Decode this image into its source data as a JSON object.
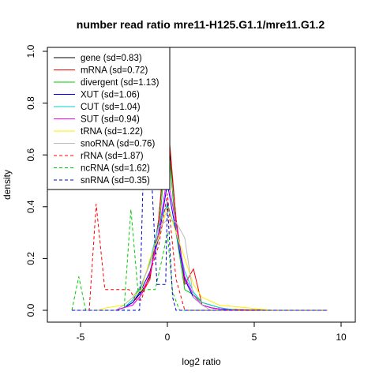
{
  "chart_data": {
    "type": "line",
    "title": "number read ratio mre11-H125.G1.1/mre11.G1.2",
    "xlabel": "log2 ratio",
    "ylabel": "density",
    "xlim": [
      -6,
      10
    ],
    "ylim": [
      0,
      1.0
    ],
    "xticks": [
      -5,
      0,
      5,
      10
    ],
    "xtick_labels": [
      "-5",
      "0",
      "5",
      "10"
    ],
    "yticks": [
      0.0,
      0.2,
      0.4,
      0.6,
      0.8,
      1.0
    ],
    "ytick_labels": [
      "0.0",
      "0.2",
      "0.4",
      "0.6",
      "0.8",
      "1.0"
    ],
    "legend_position": "top-left",
    "series": [
      {
        "name": "gene (sd=0.83)",
        "color": "#000000",
        "dash": "solid",
        "x": [
          -5.5,
          -3,
          -2.5,
          -2,
          -1.5,
          -1,
          -0.5,
          0,
          0.5,
          1,
          1.5,
          2,
          2.5,
          3,
          4,
          6,
          9.2
        ],
        "y": [
          0,
          0,
          0.01,
          0.03,
          0.07,
          0.13,
          0.35,
          0.72,
          0.35,
          0.12,
          0.05,
          0.02,
          0.01,
          0.005,
          0.002,
          0,
          0
        ]
      },
      {
        "name": "mRNA (sd=0.72)",
        "color": "#ff0000",
        "dash": "solid",
        "x": [
          -5.5,
          -3,
          -2.5,
          -2,
          -1.5,
          -1,
          -0.5,
          0,
          0.5,
          1,
          1.5,
          2,
          2.5,
          3,
          4,
          6,
          9.2
        ],
        "y": [
          0,
          0,
          0.01,
          0.02,
          0.06,
          0.12,
          0.35,
          0.75,
          0.35,
          0.1,
          0.16,
          0.02,
          0.01,
          0.005,
          0.002,
          0,
          0
        ]
      },
      {
        "name": "divergent (sd=1.13)",
        "color": "#00cc00",
        "dash": "solid",
        "x": [
          -5.5,
          -3,
          -2.5,
          -2,
          -1.5,
          -1,
          -0.5,
          0,
          0.5,
          1,
          1.5,
          2,
          2.5,
          3,
          4,
          6,
          9.2
        ],
        "y": [
          0,
          0,
          0.01,
          0.04,
          0.1,
          0.18,
          0.3,
          0.68,
          0.3,
          0.08,
          0.06,
          0.03,
          0.02,
          0.01,
          0,
          0,
          0
        ]
      },
      {
        "name": "XUT (sd=1.06)",
        "color": "#0000ff",
        "dash": "solid",
        "x": [
          -5.5,
          -3,
          -2.5,
          -2,
          -1.5,
          -1,
          -0.5,
          0,
          0.5,
          1,
          1.5,
          2,
          2.5,
          3,
          4,
          6,
          9.2
        ],
        "y": [
          0,
          0,
          0.01,
          0.03,
          0.08,
          0.15,
          0.28,
          0.49,
          0.3,
          0.12,
          0.05,
          0.02,
          0.01,
          0.005,
          0,
          0,
          0
        ]
      },
      {
        "name": "CUT (sd=1.04)",
        "color": "#00cccc",
        "dash": "solid",
        "x": [
          -5.5,
          -3,
          -2.5,
          -2,
          -1.5,
          -1,
          -0.5,
          0,
          0.5,
          1,
          1.5,
          2,
          2.5,
          3,
          4,
          6,
          9.2
        ],
        "y": [
          0,
          0,
          0.01,
          0.04,
          0.09,
          0.19,
          0.33,
          0.41,
          0.3,
          0.15,
          0.07,
          0.03,
          0.02,
          0.01,
          0,
          0,
          0
        ]
      },
      {
        "name": "SUT (sd=0.94)",
        "color": "#ff00ff",
        "dash": "solid",
        "x": [
          -5.5,
          -3,
          -2.5,
          -2,
          -1.5,
          -1,
          -0.5,
          0,
          0.5,
          1,
          1.5,
          2,
          2.5,
          3,
          4,
          6,
          9.2
        ],
        "y": [
          0,
          0,
          0.01,
          0.02,
          0.06,
          0.14,
          0.3,
          0.52,
          0.33,
          0.13,
          0.06,
          0.02,
          0.01,
          0.005,
          0,
          0,
          0
        ]
      },
      {
        "name": "tRNA (sd=1.22)",
        "color": "#ffee00",
        "dash": "solid",
        "x": [
          -5.5,
          -4,
          -3.5,
          -3,
          -2.5,
          -2,
          -1.5,
          -1,
          -0.5,
          0,
          0.5,
          1,
          1.5,
          2,
          3,
          6,
          9.2
        ],
        "y": [
          0,
          0,
          0.01,
          0.015,
          0.02,
          0.05,
          0.08,
          0.2,
          0.28,
          0.4,
          0.3,
          0.2,
          0.1,
          0.05,
          0.02,
          0,
          0
        ]
      },
      {
        "name": "snoRNA (sd=0.76)",
        "color": "#bbbbbb",
        "dash": "solid",
        "x": [
          -5.5,
          -3,
          -2.5,
          -2,
          -1.5,
          -1,
          -0.5,
          0,
          0.5,
          1,
          1.5,
          2,
          2.5,
          3,
          4,
          6,
          9.2
        ],
        "y": [
          0,
          0,
          0.02,
          0.05,
          0.1,
          0.18,
          0.32,
          0.35,
          0.34,
          0.28,
          0.05,
          0.02,
          0,
          0,
          0,
          0,
          0
        ]
      },
      {
        "name": "rRNA (sd=1.87)",
        "color": "#ff0000",
        "dash": "dashed",
        "x": [
          -5.5,
          -4.5,
          -4.1,
          -3.6,
          -2.5,
          -2.2,
          -1.8,
          -1.5,
          -0.5,
          0,
          0.5,
          1,
          9.2
        ],
        "y": [
          0,
          0,
          0.41,
          0.08,
          0.08,
          0.08,
          0.04,
          0.04,
          0.25,
          0.45,
          0.12,
          0,
          0
        ]
      },
      {
        "name": "ncRNA (sd=1.62)",
        "color": "#00cc00",
        "dash": "dashed",
        "x": [
          -5.5,
          -5.1,
          -4.7,
          -2.5,
          -2.1,
          -1.7,
          -0.7,
          -0.3,
          0,
          0.3,
          0.7,
          1.3,
          9.2
        ],
        "y": [
          0,
          0.13,
          0,
          0,
          0.39,
          0.08,
          0.08,
          0.2,
          0.3,
          0.07,
          0,
          0,
          0
        ]
      },
      {
        "name": "snRNA (sd=0.35)",
        "color": "#0000cc",
        "dash": "dashed",
        "x": [
          -5.5,
          -1.6,
          -1.4,
          -0.9,
          -0.6,
          -0.1,
          0,
          0.3,
          0.5,
          9.2
        ],
        "y": [
          0,
          0,
          0.5,
          0.5,
          0.1,
          0.1,
          0.42,
          0.05,
          0,
          0
        ]
      }
    ]
  }
}
